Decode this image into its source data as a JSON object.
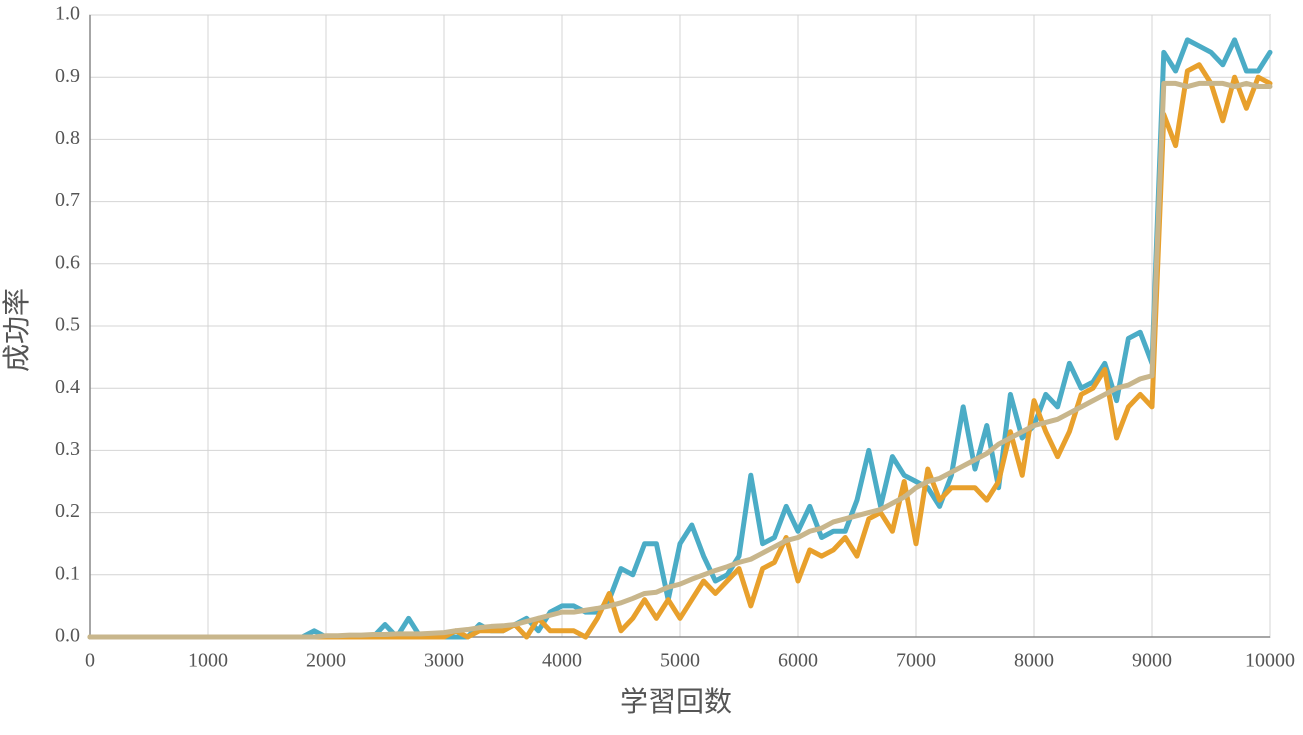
{
  "chart_data": {
    "type": "line",
    "xlabel": "学習回数",
    "ylabel": "成功率",
    "x": [
      0,
      100,
      200,
      300,
      400,
      500,
      600,
      700,
      800,
      900,
      1000,
      1100,
      1200,
      1300,
      1400,
      1500,
      1600,
      1700,
      1800,
      1900,
      2000,
      2100,
      2200,
      2300,
      2400,
      2500,
      2600,
      2700,
      2800,
      2900,
      3000,
      3100,
      3200,
      3300,
      3400,
      3500,
      3600,
      3700,
      3800,
      3900,
      4000,
      4100,
      4200,
      4300,
      4400,
      4500,
      4600,
      4700,
      4800,
      4900,
      5000,
      5100,
      5200,
      5300,
      5400,
      5500,
      5600,
      5700,
      5800,
      5900,
      6000,
      6100,
      6200,
      6300,
      6400,
      6500,
      6600,
      6700,
      6800,
      6900,
      7000,
      7100,
      7200,
      7300,
      7400,
      7500,
      7600,
      7700,
      7800,
      7900,
      8000,
      8100,
      8200,
      8300,
      8400,
      8500,
      8600,
      8700,
      8800,
      8900,
      9000,
      9100,
      9200,
      9300,
      9400,
      9500,
      9600,
      9700,
      9800,
      9900,
      10000
    ],
    "series": [
      {
        "color": "#4bacc6",
        "values": [
          0,
          0,
          0,
          0,
          0,
          0,
          0,
          0,
          0,
          0,
          0,
          0,
          0,
          0,
          0,
          0,
          0,
          0,
          0,
          0.01,
          0,
          0,
          0,
          0,
          0,
          0.02,
          0,
          0.03,
          0,
          0,
          0,
          0,
          0,
          0.02,
          0.01,
          0.01,
          0.02,
          0.03,
          0.01,
          0.04,
          0.05,
          0.05,
          0.04,
          0.04,
          0.06,
          0.11,
          0.1,
          0.15,
          0.15,
          0.06,
          0.15,
          0.18,
          0.13,
          0.09,
          0.1,
          0.13,
          0.26,
          0.15,
          0.16,
          0.21,
          0.17,
          0.21,
          0.16,
          0.17,
          0.17,
          0.22,
          0.3,
          0.21,
          0.29,
          0.26,
          0.25,
          0.24,
          0.21,
          0.26,
          0.37,
          0.27,
          0.34,
          0.24,
          0.39,
          0.32,
          0.34,
          0.39,
          0.37,
          0.44,
          0.4,
          0.41,
          0.44,
          0.38,
          0.48,
          0.49,
          0.44,
          0.94,
          0.91,
          0.96,
          0.95,
          0.94,
          0.92,
          0.96,
          0.91,
          0.91,
          0.94
        ]
      },
      {
        "color": "#e8a02c",
        "values": [
          0,
          0,
          0,
          0,
          0,
          0,
          0,
          0,
          0,
          0,
          0,
          0,
          0,
          0,
          0,
          0,
          0,
          0,
          0,
          0,
          0,
          0,
          0,
          0,
          0,
          0,
          0,
          0,
          0,
          0,
          0,
          0.01,
          0,
          0.01,
          0.01,
          0.01,
          0.02,
          0,
          0.03,
          0.01,
          0.01,
          0.01,
          0,
          0.03,
          0.07,
          0.01,
          0.03,
          0.06,
          0.03,
          0.06,
          0.03,
          0.06,
          0.09,
          0.07,
          0.09,
          0.11,
          0.05,
          0.11,
          0.12,
          0.16,
          0.09,
          0.14,
          0.13,
          0.14,
          0.16,
          0.13,
          0.19,
          0.2,
          0.17,
          0.25,
          0.15,
          0.27,
          0.22,
          0.24,
          0.24,
          0.24,
          0.22,
          0.25,
          0.33,
          0.26,
          0.38,
          0.33,
          0.29,
          0.33,
          0.39,
          0.4,
          0.43,
          0.32,
          0.37,
          0.39,
          0.37,
          0.84,
          0.79,
          0.91,
          0.92,
          0.89,
          0.83,
          0.9,
          0.85,
          0.9,
          0.89
        ]
      },
      {
        "color": "#c8b68c",
        "values": [
          0,
          0,
          0,
          0,
          0,
          0,
          0,
          0,
          0,
          0,
          0,
          0,
          0,
          0,
          0,
          0,
          0,
          0,
          0,
          0,
          0.002,
          0.002,
          0.003,
          0.003,
          0.004,
          0.004,
          0.005,
          0.005,
          0.005,
          0.006,
          0.007,
          0.01,
          0.012,
          0.015,
          0.017,
          0.018,
          0.02,
          0.025,
          0.03,
          0.035,
          0.04,
          0.04,
          0.043,
          0.046,
          0.05,
          0.055,
          0.062,
          0.07,
          0.072,
          0.08,
          0.085,
          0.093,
          0.1,
          0.107,
          0.113,
          0.12,
          0.125,
          0.135,
          0.145,
          0.155,
          0.16,
          0.17,
          0.175,
          0.185,
          0.19,
          0.195,
          0.2,
          0.205,
          0.215,
          0.225,
          0.24,
          0.25,
          0.255,
          0.265,
          0.275,
          0.285,
          0.295,
          0.31,
          0.32,
          0.33,
          0.34,
          0.345,
          0.35,
          0.36,
          0.37,
          0.38,
          0.39,
          0.4,
          0.405,
          0.415,
          0.42,
          0.89,
          0.89,
          0.885,
          0.89,
          0.89,
          0.89,
          0.885,
          0.89,
          0.885,
          0.885
        ]
      }
    ],
    "xlim": [
      0,
      10000
    ],
    "xticks": [
      0,
      1000,
      2000,
      3000,
      4000,
      5000,
      6000,
      7000,
      8000,
      9000,
      10000
    ],
    "ylim": [
      0,
      1
    ],
    "yticks": [
      {
        "value": 0,
        "label": "0.0"
      },
      0.1,
      0.2,
      0.3,
      0.4,
      0.5,
      0.6,
      0.7,
      0.8,
      0.9,
      {
        "value": 1,
        "label": "1.0"
      }
    ],
    "grid": true
  }
}
